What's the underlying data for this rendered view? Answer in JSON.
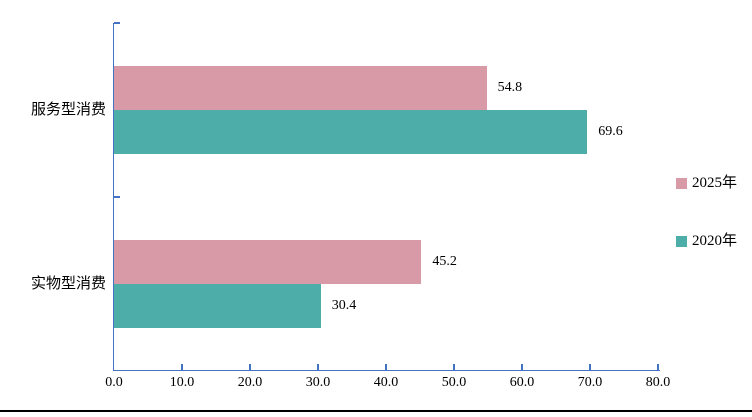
{
  "chart_data": {
    "type": "bar",
    "orientation": "horizontal",
    "title": "",
    "categories": [
      "服务型消费",
      "实物型消费"
    ],
    "series": [
      {
        "name": "2025年",
        "color": "#D99AA8",
        "values": [
          54.8,
          45.2
        ]
      },
      {
        "name": "2020年",
        "color": "#4DADA9",
        "values": [
          69.6,
          30.4
        ]
      }
    ],
    "xlim": [
      0,
      80
    ],
    "x_tick_step": 10,
    "x_tick_labels": [
      "0.0",
      "10.0",
      "20.0",
      "30.0",
      "40.0",
      "50.0",
      "60.0",
      "70.0",
      "80.0"
    ],
    "data_labels": [
      "54.8",
      "69.6",
      "45.2",
      "30.4"
    ],
    "axis_color": "#4472C4",
    "text_color": "#000000",
    "legend_position": "right-middle",
    "grid": false
  }
}
